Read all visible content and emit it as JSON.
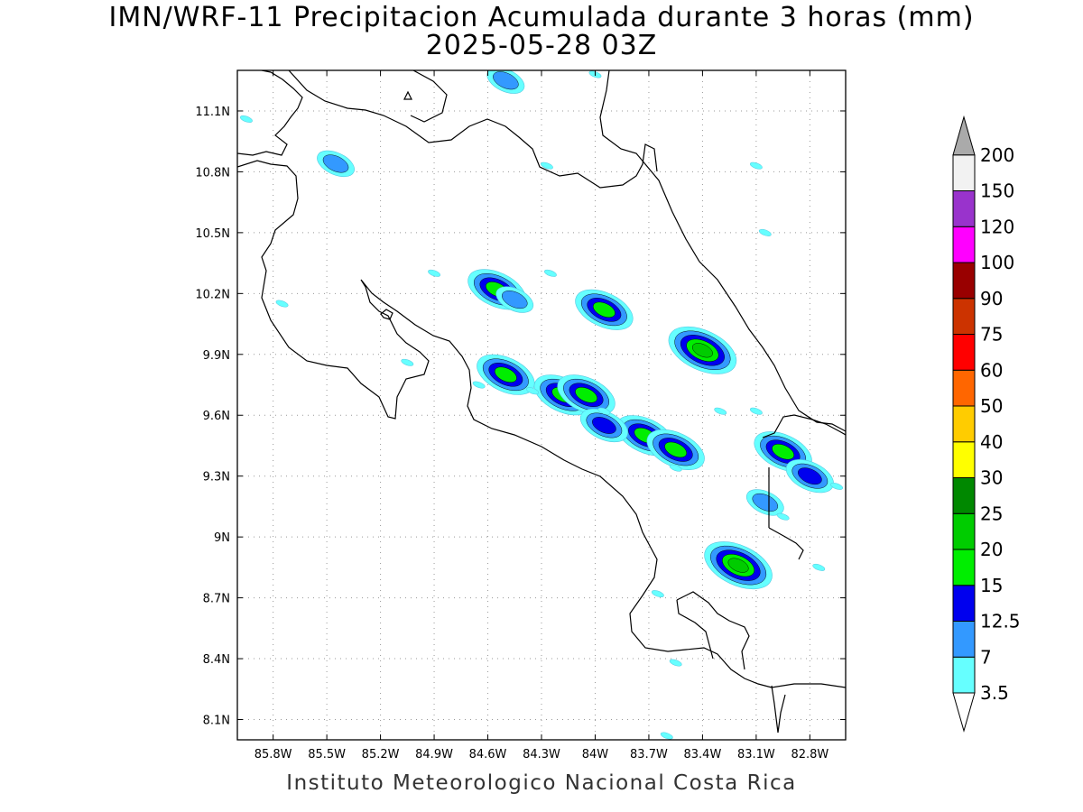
{
  "title_line1": "IMN/WRF-11 Precipitacion Acumulada durante 3 horas (mm)",
  "title_line2": "2025-05-28 03Z",
  "footer": "Instituto Meteorologico Nacional Costa Rica",
  "map": {
    "lon_range": [
      -86.0,
      -82.6
    ],
    "lat_range": [
      8.0,
      11.3
    ],
    "lon_ticks": [
      {
        "value": -85.8,
        "label": "85.8W"
      },
      {
        "value": -85.5,
        "label": "85.5W"
      },
      {
        "value": -85.2,
        "label": "85.2W"
      },
      {
        "value": -84.9,
        "label": "84.9W"
      },
      {
        "value": -84.6,
        "label": "84.6W"
      },
      {
        "value": -84.3,
        "label": "84.3W"
      },
      {
        "value": -84.0,
        "label": "84W"
      },
      {
        "value": -83.7,
        "label": "83.7W"
      },
      {
        "value": -83.4,
        "label": "83.4W"
      },
      {
        "value": -83.1,
        "label": "83.1W"
      },
      {
        "value": -82.8,
        "label": "82.8W"
      }
    ],
    "lat_ticks": [
      {
        "value": 11.1,
        "label": "11.1N"
      },
      {
        "value": 10.8,
        "label": "10.8N"
      },
      {
        "value": 10.5,
        "label": "10.5N"
      },
      {
        "value": 10.2,
        "label": "10.2N"
      },
      {
        "value": 9.9,
        "label": "9.9N"
      },
      {
        "value": 9.6,
        "label": "9.6N"
      },
      {
        "value": 9.3,
        "label": "9.3N"
      },
      {
        "value": 9.0,
        "label": "9N"
      },
      {
        "value": 8.7,
        "label": "8.7N"
      },
      {
        "value": 8.4,
        "label": "8.4N"
      },
      {
        "value": 8.1,
        "label": "8.1N"
      }
    ],
    "gridlines": true
  },
  "colorbar": {
    "levels": [
      {
        "label": "3.5",
        "color": "#66ffff"
      },
      {
        "label": "7",
        "color": "#3399ff"
      },
      {
        "label": "12.5",
        "color": "#0000ee"
      },
      {
        "label": "15",
        "color": "#00ee00"
      },
      {
        "label": "20",
        "color": "#00cc00"
      },
      {
        "label": "25",
        "color": "#008800"
      },
      {
        "label": "30",
        "color": "#ffff00"
      },
      {
        "label": "40",
        "color": "#ffcc00"
      },
      {
        "label": "50",
        "color": "#ff6600"
      },
      {
        "label": "60",
        "color": "#ff0000"
      },
      {
        "label": "75",
        "color": "#cc3300"
      },
      {
        "label": "90",
        "color": "#990000"
      },
      {
        "label": "100",
        "color": "#ff00ff"
      },
      {
        "label": "120",
        "color": "#9933cc"
      },
      {
        "label": "150",
        "color": "#f2f2f2"
      },
      {
        "label": "200",
        "color": "#aaaaaa"
      }
    ],
    "bottom_cap_color": "#ffffff"
  },
  "precip_cells": [
    {
      "lon": -84.55,
      "lat": 10.22,
      "level": 3
    },
    {
      "lon": -84.45,
      "lat": 10.17,
      "level": 1
    },
    {
      "lon": -83.95,
      "lat": 10.12,
      "level": 3
    },
    {
      "lon": -83.4,
      "lat": 9.92,
      "level": 4
    },
    {
      "lon": -84.5,
      "lat": 9.8,
      "level": 3
    },
    {
      "lon": -84.18,
      "lat": 9.7,
      "level": 3
    },
    {
      "lon": -84.05,
      "lat": 9.7,
      "level": 3
    },
    {
      "lon": -83.72,
      "lat": 9.5,
      "level": 3
    },
    {
      "lon": -83.55,
      "lat": 9.43,
      "level": 3
    },
    {
      "lon": -82.95,
      "lat": 9.42,
      "level": 3
    },
    {
      "lon": -82.8,
      "lat": 9.3,
      "level": 2
    },
    {
      "lon": -83.2,
      "lat": 8.86,
      "level": 4
    },
    {
      "lon": -83.95,
      "lat": 9.55,
      "level": 2
    },
    {
      "lon": -85.45,
      "lat": 10.84,
      "level": 1
    },
    {
      "lon": -84.5,
      "lat": 11.25,
      "level": 1
    },
    {
      "lon": -83.05,
      "lat": 9.17,
      "level": 1
    }
  ]
}
